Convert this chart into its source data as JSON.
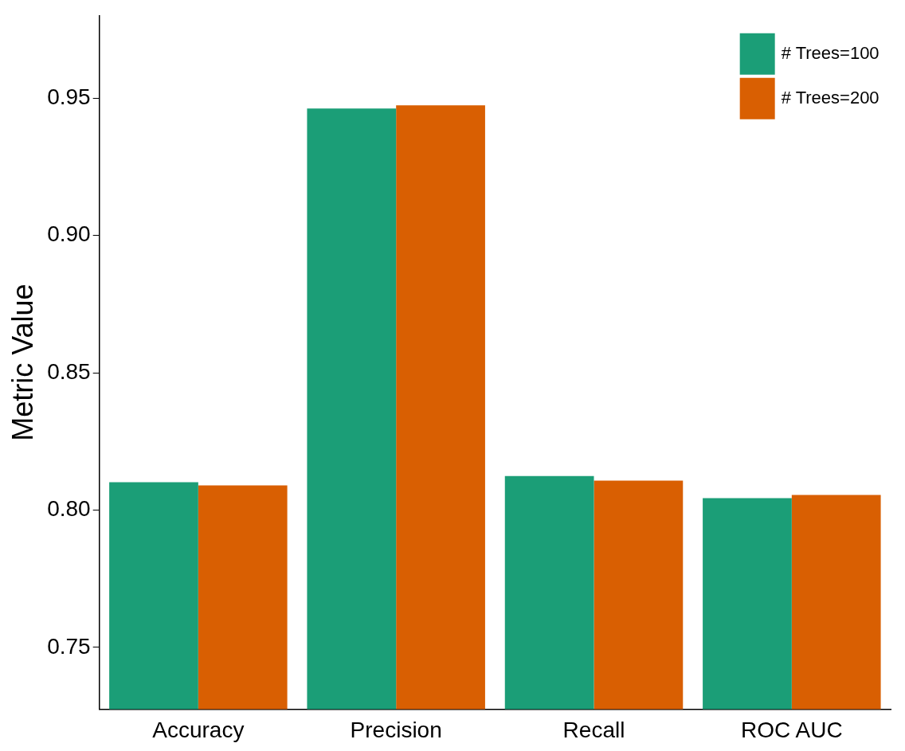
{
  "chart_data": {
    "type": "bar",
    "ylabel": "Metric Value",
    "categories": [
      "Accuracy",
      "Precision",
      "Recall",
      "ROC AUC"
    ],
    "series": [
      {
        "name": "# Trees=100",
        "color": "#1b9e77",
        "values": [
          0.8101,
          0.9462,
          0.8124,
          0.8043
        ]
      },
      {
        "name": "# Trees=200",
        "color": "#d95f02",
        "values": [
          0.809,
          0.9474,
          0.8107,
          0.8055
        ]
      }
    ],
    "ylim": [
      0.7275,
      0.98
    ],
    "yticks": [
      {
        "value": 0.75,
        "label": "0.75"
      },
      {
        "value": 0.8,
        "label": "0.80"
      },
      {
        "value": 0.85,
        "label": "0.85"
      },
      {
        "value": 0.9,
        "label": "0.90"
      },
      {
        "value": 0.95,
        "label": "0.95"
      }
    ],
    "grid": false,
    "legend": "top right"
  }
}
